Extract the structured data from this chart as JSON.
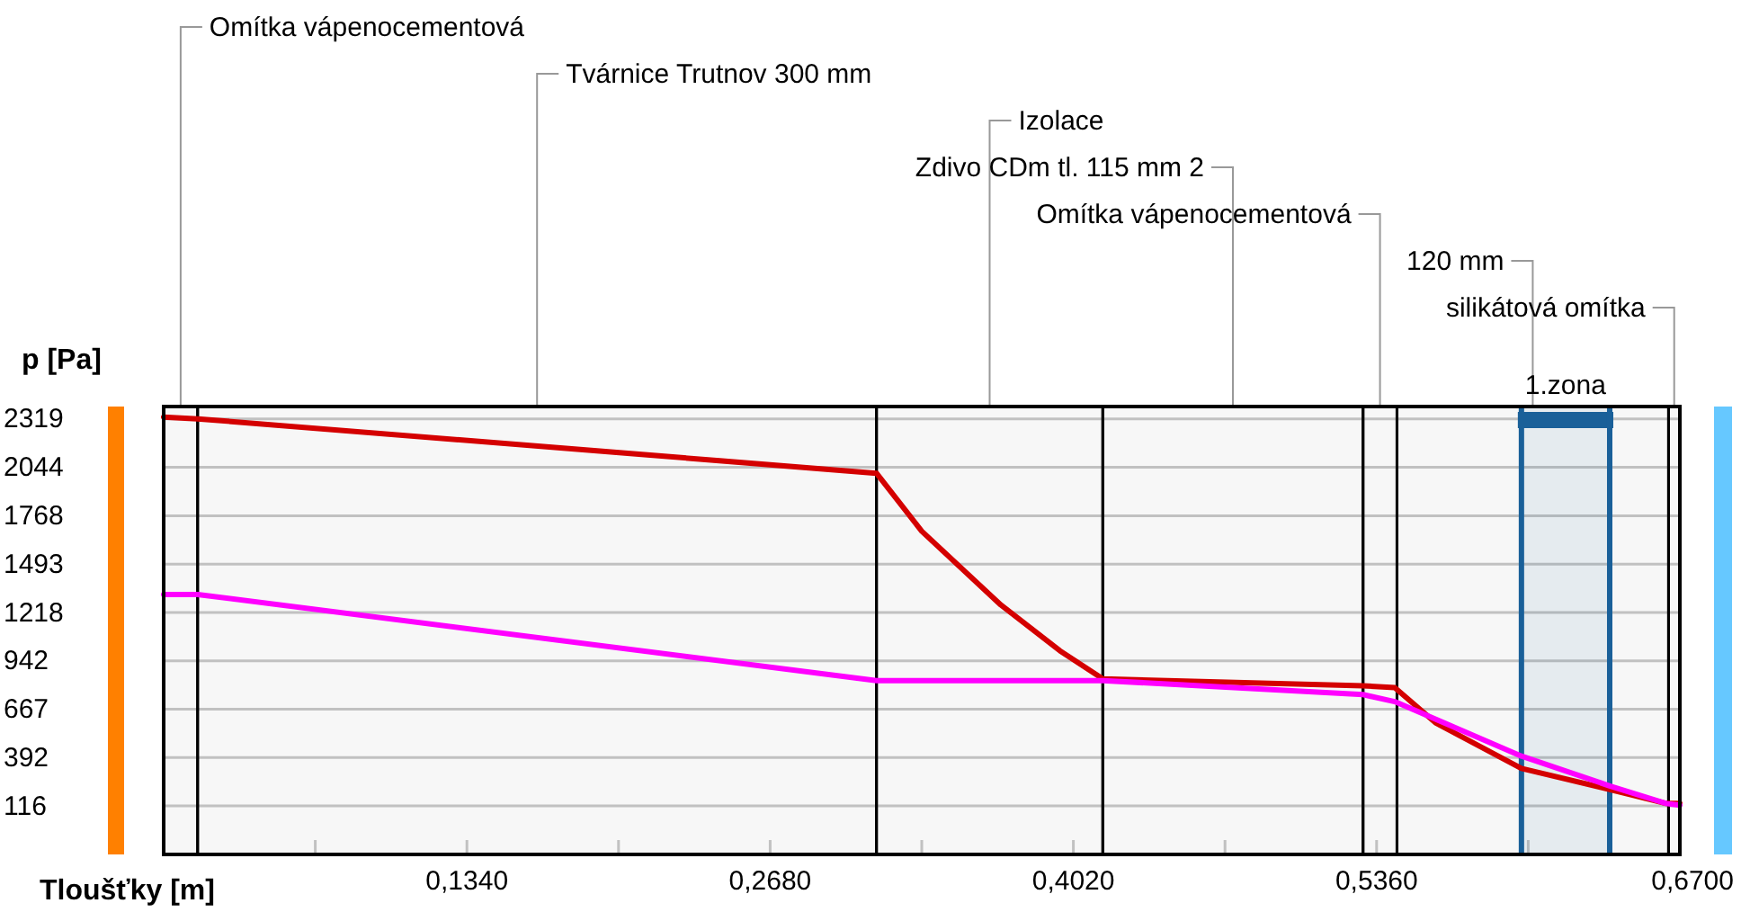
{
  "chart_data": {
    "type": "line",
    "xlabel": "Tloušťky [m]",
    "ylabel": "p [Pa]",
    "xlim": [
      0,
      0.67
    ],
    "xticks": [
      {
        "value": 0.067,
        "label": null
      },
      {
        "value": 0.134,
        "label": "0,1340"
      },
      {
        "value": 0.201,
        "label": null
      },
      {
        "value": 0.268,
        "label": "0,2680"
      },
      {
        "value": 0.335,
        "label": null
      },
      {
        "value": 0.402,
        "label": "0,4020"
      },
      {
        "value": 0.469,
        "label": null
      },
      {
        "value": 0.536,
        "label": "0,5360"
      },
      {
        "value": 0.603,
        "label": null
      },
      {
        "value": 0.67,
        "label": "0,6700"
      }
    ],
    "ylim": [
      -160,
      2390
    ],
    "yticks": [
      116,
      392,
      667,
      942,
      1218,
      1493,
      1768,
      2044,
      2319
    ],
    "grid": "y",
    "series": [
      {
        "color": "#d40000",
        "x": [
          0,
          0.015,
          0.315,
          0.335,
          0.37,
          0.396,
          0.415,
          0.53,
          0.544,
          0.562,
          0.6,
          0.639,
          0.664,
          0.67
        ],
        "values": [
          2330,
          2320,
          2010,
          1680,
          1260,
          1000,
          840,
          800,
          790,
          590,
          330,
          210,
          130,
          130
        ]
      },
      {
        "color": "#ff00ff",
        "x": [
          0,
          0.015,
          0.315,
          0.415,
          0.53,
          0.544,
          0.6,
          0.639,
          0.664,
          0.67
        ],
        "values": [
          1320,
          1320,
          830,
          830,
          750,
          710,
          400,
          230,
          130,
          120
        ]
      }
    ],
    "bands": [
      {
        "axis": "x",
        "from": 0,
        "to": 0.015,
        "label": "Omítka vápenocementová",
        "color": "#000000"
      },
      {
        "axis": "x",
        "from": 0.015,
        "to": 0.315,
        "label": "Tvárnice Trutnov 300 mm",
        "color": "#000000"
      },
      {
        "axis": "x",
        "from": 0.315,
        "to": 0.415,
        "label": "Izolace",
        "color": "#000000"
      },
      {
        "axis": "x",
        "from": 0.415,
        "to": 0.53,
        "label": "Zdivo CDm tl. 115 mm 2",
        "color": "#000000"
      },
      {
        "axis": "x",
        "from": 0.53,
        "to": 0.545,
        "label": "Omítka vápenocementová",
        "color": "#000000"
      },
      {
        "axis": "x",
        "from": 0.545,
        "to": 0.665,
        "label": "120 mm",
        "color": "#000000"
      },
      {
        "axis": "x",
        "from": 0.665,
        "to": 0.67,
        "label": "silikátová omítka",
        "color": "#000000"
      },
      {
        "axis": "x",
        "from": 0.6,
        "to": 0.639,
        "label": "1.zona",
        "color": "#1a6099"
      }
    ],
    "ref_lines": [
      {
        "axis": "x",
        "value": 0.6,
        "color": "#1a6099"
      },
      {
        "axis": "x",
        "value": 0.639,
        "color": "#1a6099"
      }
    ]
  }
}
